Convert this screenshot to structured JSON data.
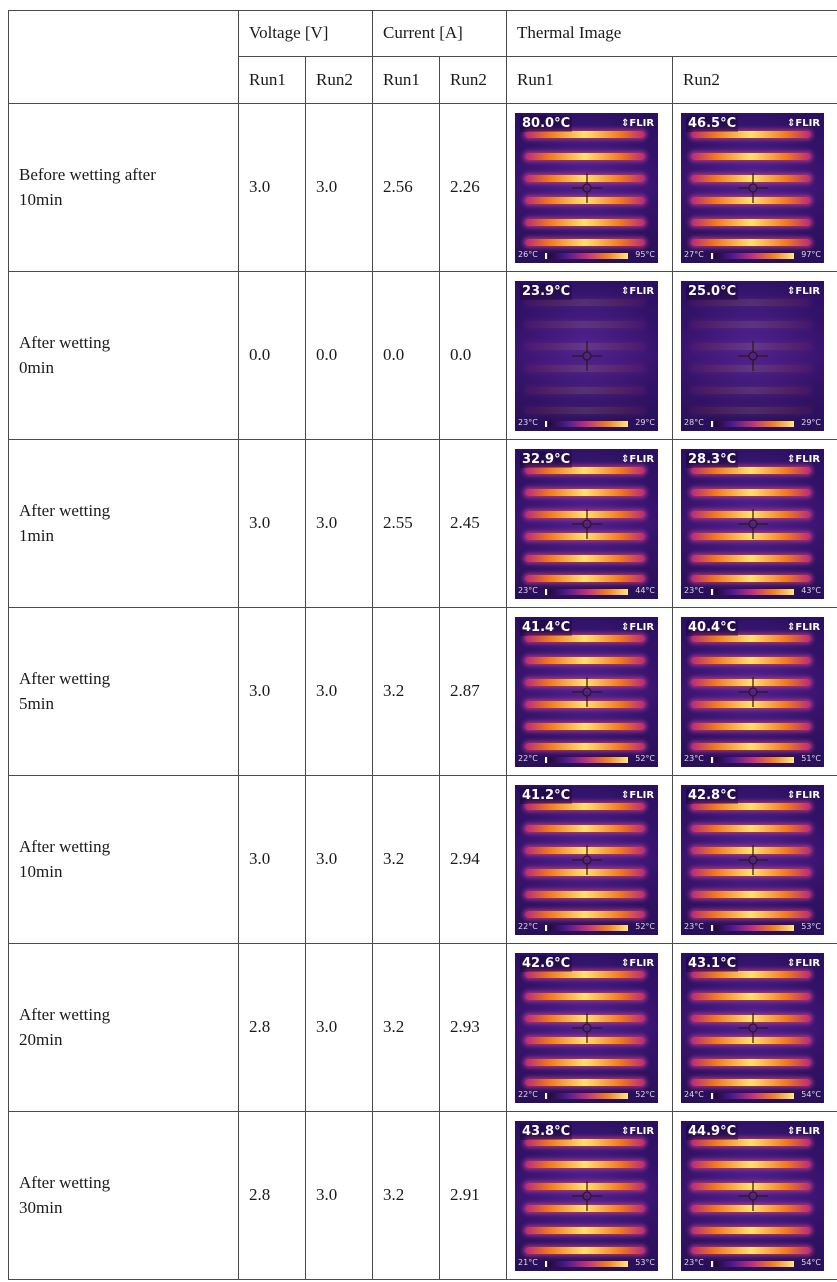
{
  "header": {
    "voltage": "Voltage [V]",
    "current": "Current [A]",
    "thermal": "Thermal Image",
    "run1": "Run1",
    "run2": "Run2"
  },
  "rows": [
    {
      "label_line1": "Before wetting after",
      "label_line2": "10min",
      "voltage_run1": "3.0",
      "voltage_run2": "3.0",
      "current_run1": "2.56",
      "current_run2": "2.26",
      "thermal_run1": {
        "temp": "80.0°C",
        "brand": "FLIR",
        "min": "26°C",
        "max": "95°C"
      },
      "thermal_run2": {
        "temp": "46.5°C",
        "brand": "FLIR",
        "min": "27°C",
        "max": "97°C"
      }
    },
    {
      "label_line1": "After wetting",
      "label_line2": "0min",
      "voltage_run1": "0.0",
      "voltage_run2": "0.0",
      "current_run1": "0.0",
      "current_run2": "0.0",
      "thermal_run1": {
        "temp": "23.9°C",
        "brand": "FLIR",
        "min": "23°C",
        "max": "29°C"
      },
      "thermal_run2": {
        "temp": "25.0°C",
        "brand": "FLIR",
        "min": "28°C",
        "max": "29°C"
      }
    },
    {
      "label_line1": "After wetting",
      "label_line2": "1min",
      "voltage_run1": "3.0",
      "voltage_run2": "3.0",
      "current_run1": "2.55",
      "current_run2": "2.45",
      "thermal_run1": {
        "temp": "32.9°C",
        "brand": "FLIR",
        "min": "23°C",
        "max": "44°C"
      },
      "thermal_run2": {
        "temp": "28.3°C",
        "brand": "FLIR",
        "min": "23°C",
        "max": "43°C"
      }
    },
    {
      "label_line1": "After wetting",
      "label_line2": "5min",
      "voltage_run1": "3.0",
      "voltage_run2": "3.0",
      "current_run1": "3.2",
      "current_run2": "2.87",
      "thermal_run1": {
        "temp": "41.4°C",
        "brand": "FLIR",
        "min": "22°C",
        "max": "52°C"
      },
      "thermal_run2": {
        "temp": "40.4°C",
        "brand": "FLIR",
        "min": "23°C",
        "max": "51°C"
      }
    },
    {
      "label_line1": "After wetting",
      "label_line2": "10min",
      "voltage_run1": "3.0",
      "voltage_run2": "3.0",
      "current_run1": "3.2",
      "current_run2": "2.94",
      "thermal_run1": {
        "temp": "41.2°C",
        "brand": "FLIR",
        "min": "22°C",
        "max": "52°C"
      },
      "thermal_run2": {
        "temp": "42.8°C",
        "brand": "FLIR",
        "min": "23°C",
        "max": "53°C"
      }
    },
    {
      "label_line1": "After wetting",
      "label_line2": "20min",
      "voltage_run1": "2.8",
      "voltage_run2": "3.0",
      "current_run1": "3.2",
      "current_run2": "2.93",
      "thermal_run1": {
        "temp": "42.6°C",
        "brand": "FLIR",
        "min": "22°C",
        "max": "52°C"
      },
      "thermal_run2": {
        "temp": "43.1°C",
        "brand": "FLIR",
        "min": "24°C",
        "max": "54°C"
      }
    },
    {
      "label_line1": "After wetting",
      "label_line2": "30min",
      "voltage_run1": "2.8",
      "voltage_run2": "3.0",
      "current_run1": "3.2",
      "current_run2": "2.91",
      "thermal_run1": {
        "temp": "43.8°C",
        "brand": "FLIR",
        "min": "21°C",
        "max": "53°C"
      },
      "thermal_run2": {
        "temp": "44.9°C",
        "brand": "FLIR",
        "min": "23°C",
        "max": "54°C"
      }
    }
  ],
  "colors": {
    "thermal_background": "#2a1060",
    "thermal_hot": "#ffe070",
    "thermal_warm": "#f07820",
    "thermal_mid": "#b8287a",
    "border": "#4a4a4a"
  },
  "icons": {
    "crosshair": "crosshair-icon",
    "flir_logo": "flir-logo-icon"
  }
}
